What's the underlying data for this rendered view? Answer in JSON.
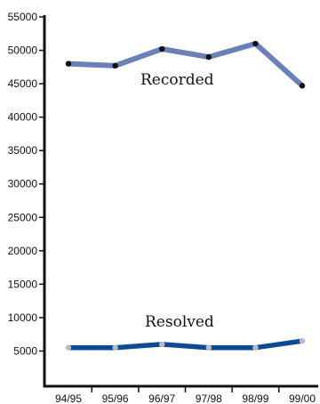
{
  "chart_data": {
    "type": "line",
    "categories": [
      "94/95",
      "95/96",
      "96/97",
      "97/98",
      "98/99",
      "99/00"
    ],
    "ylim": [
      0,
      55000
    ],
    "y_ticks": [
      5000,
      10000,
      15000,
      20000,
      25000,
      30000,
      35000,
      40000,
      45000,
      50000,
      55000
    ],
    "grid": false,
    "series": [
      {
        "name": "Recorded",
        "values": [
          48000,
          47700,
          50200,
          49000,
          51000,
          44700
        ],
        "line_color": "#6a80b8",
        "marker_color": "#111111"
      },
      {
        "name": "Resolved",
        "values": [
          5500,
          5500,
          6000,
          5500,
          5500,
          6500
        ],
        "line_color": "#0d4a94",
        "marker_color": "#b8bcc4"
      }
    ]
  }
}
